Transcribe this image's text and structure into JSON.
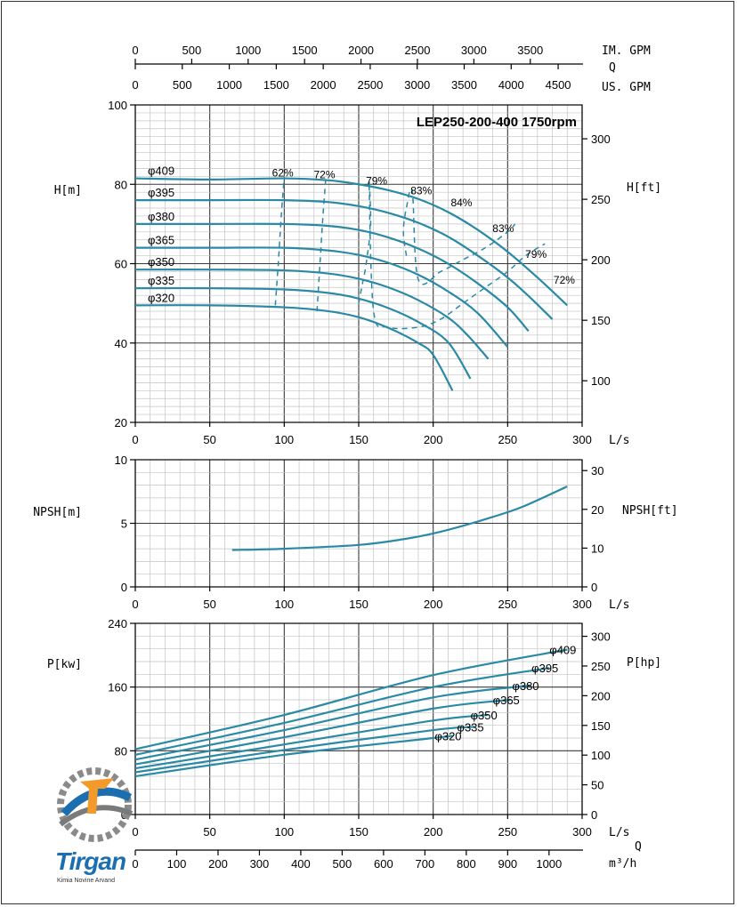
{
  "title": "LEP250-200-400 1750rpm",
  "colors": {
    "curve": "#2a8aa6",
    "grid_major": "#3a3a3a",
    "grid_minor": "#c4c4c4"
  },
  "top_axes": {
    "imgpm_label": "IM. GPM",
    "imgpm_ticks": [
      "0",
      "500",
      "1000",
      "1500",
      "2000",
      "2500",
      "3000",
      "3500"
    ],
    "q_label": "Q",
    "usgpm_label": "US. GPM",
    "usgpm_ticks": [
      "0",
      "500",
      "1000",
      "1500",
      "2000",
      "2500",
      "3000",
      "3500",
      "4000",
      "4500"
    ]
  },
  "flow_axis": {
    "label": "L/s",
    "ticks": [
      "0",
      "50",
      "100",
      "150",
      "200",
      "250",
      "300"
    ]
  },
  "bottom_axis": {
    "q_label": "Q",
    "unit": "m³/h",
    "ticks": [
      "0",
      "100",
      "200",
      "300",
      "400",
      "500",
      "600",
      "700",
      "800",
      "900",
      "1000"
    ]
  },
  "logo": {
    "name": "Tirgan",
    "tagline": "Kimia Novine Arvand"
  },
  "chart_data": [
    {
      "type": "line",
      "name": "head",
      "xlabel": "L/s",
      "ylabel": "H[m]",
      "y2label": "H[ft]",
      "xlim": [
        0,
        300
      ],
      "ylim": [
        20,
        100
      ],
      "yticks": [
        "20",
        "40",
        "60",
        "80",
        "100"
      ],
      "y2ticks": [
        "100",
        "150",
        "200",
        "250",
        "300"
      ],
      "series": [
        {
          "name": "φ409",
          "x": [
            0,
            50,
            100,
            130,
            150,
            170,
            190,
            210,
            230,
            250,
            270,
            290
          ],
          "y": [
            81.5,
            81.2,
            81.5,
            81,
            80,
            78.5,
            76.3,
            73,
            68.5,
            63,
            56.5,
            49.5
          ]
        },
        {
          "name": "φ395",
          "x": [
            0,
            50,
            100,
            130,
            150,
            170,
            190,
            210,
            230,
            250,
            265,
            280
          ],
          "y": [
            76,
            76,
            76,
            75.5,
            74.5,
            72.8,
            70.3,
            66.8,
            62,
            56.5,
            51.5,
            46
          ]
        },
        {
          "name": "φ380",
          "x": [
            0,
            50,
            100,
            130,
            150,
            170,
            190,
            210,
            230,
            250,
            264
          ],
          "y": [
            70,
            70,
            70,
            69.5,
            68.5,
            66.6,
            63.8,
            60,
            55,
            49,
            43
          ]
        },
        {
          "name": "φ365",
          "x": [
            0,
            50,
            100,
            130,
            150,
            170,
            190,
            210,
            230,
            250
          ],
          "y": [
            64,
            64,
            64,
            63.3,
            62.2,
            60.2,
            57.2,
            53,
            47.5,
            39
          ]
        },
        {
          "name": "φ350",
          "x": [
            0,
            50,
            100,
            130,
            150,
            170,
            190,
            210,
            223,
            237
          ],
          "y": [
            58.5,
            58.5,
            58.3,
            57.5,
            56.2,
            54,
            50.8,
            46.4,
            42,
            36
          ]
        },
        {
          "name": "φ335",
          "x": [
            0,
            50,
            100,
            130,
            150,
            170,
            190,
            210,
            225
          ],
          "y": [
            53.8,
            53.8,
            53.5,
            52.6,
            51.2,
            48.8,
            45.3,
            40.2,
            31
          ]
        },
        {
          "name": "φ320",
          "x": [
            0,
            50,
            100,
            130,
            150,
            170,
            190,
            200,
            213
          ],
          "y": [
            49.5,
            49.5,
            49,
            48,
            46.5,
            43.8,
            40,
            37,
            28
          ]
        }
      ],
      "efficiency_contours": [
        {
          "label": "62%",
          "x": [
            94,
            96,
            98,
            100
          ],
          "y": [
            49.5,
            60,
            72,
            82
          ]
        },
        {
          "label": "72%",
          "x": [
            122,
            124,
            126,
            128
          ],
          "y": [
            48,
            60,
            72,
            82
          ]
        },
        {
          "label": "79%",
          "x": [
            150,
            152,
            155,
            158,
            157,
            160,
            170,
            190,
            205,
            220,
            235,
            250,
            262,
            275
          ],
          "y": [
            50,
            54,
            60,
            70,
            80,
            48,
            44,
            44,
            46,
            50,
            54,
            58,
            62,
            65
          ]
        },
        {
          "label": "83%",
          "x": [
            182,
            180,
            182,
            186,
            190,
            205,
            220,
            235,
            250,
            255
          ],
          "y": [
            62,
            68,
            74,
            78,
            56,
            58,
            61,
            64,
            68,
            70
          ]
        },
        {
          "label": "84%",
          "x": [],
          "y": []
        }
      ],
      "efficiency_labels": [
        {
          "label": "62%",
          "x": 99,
          "y": 82
        },
        {
          "label": "72%",
          "x": 127,
          "y": 81.5
        },
        {
          "label": "79%",
          "x": 162,
          "y": 80
        },
        {
          "label": "83%",
          "x": 192,
          "y": 77.5
        },
        {
          "label": "84%",
          "x": 219,
          "y": 74.5
        },
        {
          "label": "83%",
          "x": 247,
          "y": 68
        },
        {
          "label": "79%",
          "x": 269,
          "y": 61.5
        },
        {
          "label": "72%",
          "x": 288,
          "y": 55
        }
      ]
    },
    {
      "type": "line",
      "name": "npsh",
      "xlabel": "L/s",
      "ylabel": "NPSH[m]",
      "y2label": "NPSH[ft]",
      "xlim": [
        0,
        300
      ],
      "ylim": [
        0,
        10
      ],
      "yticks": [
        "0",
        "5",
        "10"
      ],
      "y2ticks": [
        "0",
        "10",
        "20",
        "30"
      ],
      "series": [
        {
          "name": "NPSH",
          "x": [
            65,
            100,
            150,
            180,
            200,
            220,
            240,
            260,
            290
          ],
          "y": [
            2.9,
            3,
            3.3,
            3.75,
            4.2,
            4.8,
            5.5,
            6.3,
            7.9
          ]
        }
      ]
    },
    {
      "type": "line",
      "name": "power",
      "xlabel": "L/s",
      "ylabel": "P[kw]",
      "y2label": "P[hp]",
      "xlim": [
        0,
        300
      ],
      "ylim": [
        0,
        240
      ],
      "yticks": [
        "0",
        "80",
        "160",
        "240"
      ],
      "y2ticks": [
        "0",
        "50",
        "100",
        "150",
        "200",
        "250",
        "300"
      ],
      "series": [
        {
          "name": "φ409",
          "x": [
            0,
            100,
            200,
            290
          ],
          "y": [
            82,
            125,
            175,
            207
          ]
        },
        {
          "name": "φ395",
          "x": [
            0,
            100,
            200,
            278
          ],
          "y": [
            75,
            115,
            160,
            184
          ]
        },
        {
          "name": "φ380",
          "x": [
            0,
            100,
            200,
            265
          ],
          "y": [
            69,
            106,
            147,
            162
          ]
        },
        {
          "name": "φ365",
          "x": [
            0,
            100,
            200,
            252
          ],
          "y": [
            63,
            97,
            133,
            144
          ]
        },
        {
          "name": "φ350",
          "x": [
            0,
            100,
            200,
            237
          ],
          "y": [
            58,
            88,
            118,
            125
          ]
        },
        {
          "name": "φ335",
          "x": [
            0,
            100,
            200,
            228
          ],
          "y": [
            53,
            81,
            106,
            110
          ]
        },
        {
          "name": "φ320",
          "x": [
            0,
            100,
            200,
            213
          ],
          "y": [
            48,
            75,
            96,
            99
          ]
        }
      ]
    }
  ]
}
